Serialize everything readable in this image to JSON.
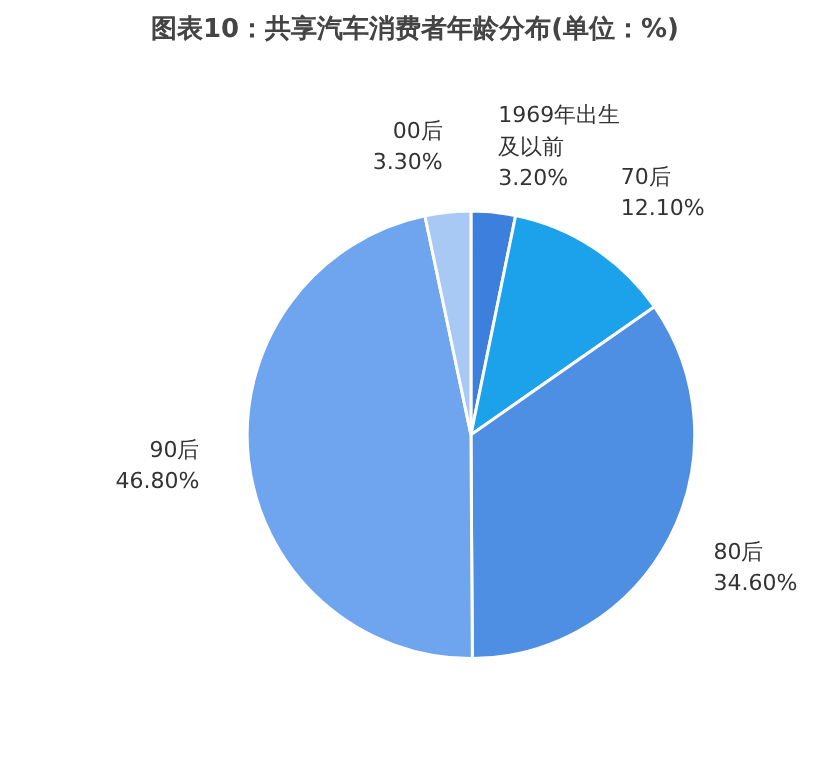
{
  "chart_data": {
    "type": "pie",
    "title": "图表10：共享汽车消费者年龄分布(单位：%)",
    "categories": [
      "1969年出生及以前",
      "70后",
      "80后",
      "90后",
      "00后"
    ],
    "values": [
      3.2,
      12.1,
      34.6,
      46.8,
      3.3
    ],
    "value_labels": [
      "3.20%",
      "12.10%",
      "34.60%",
      "46.80%",
      "3.30%"
    ],
    "colors": [
      "#3d7fdc",
      "#1ba2ea",
      "#4f8fe3",
      "#6ea5ee",
      "#a8c9f3"
    ]
  }
}
